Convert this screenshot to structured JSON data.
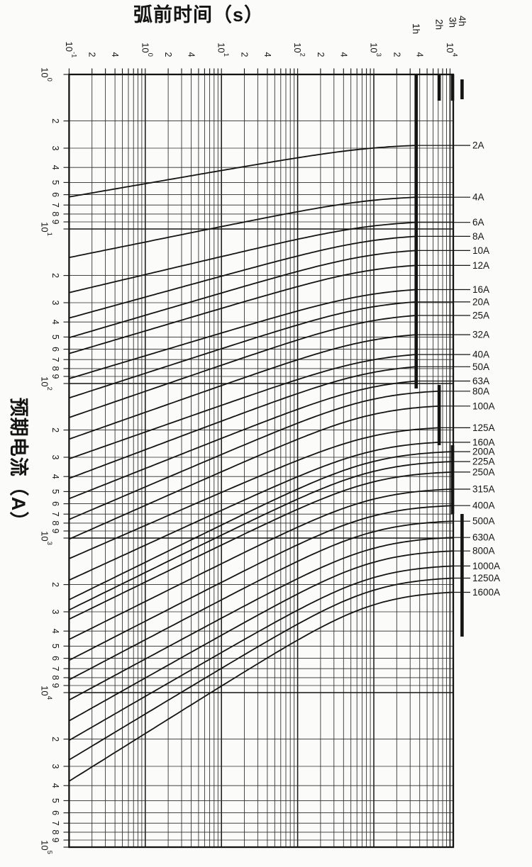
{
  "titles": {
    "x": "弧前时间（s）",
    "y": "预期电流（A）"
  },
  "chart_data": {
    "type": "line",
    "title": "弧前时间（s）",
    "xlabel": "弧前时间（s）",
    "ylabel": "预期电流（A）",
    "description": "Fuse pre-arcing time vs prospective current characteristic curves, log-log grid, time horizontal (0.1 s to >10^4 s), current vertical increasing downward (1 A to 10^5 A)",
    "x_axis": {
      "unit": "s",
      "scale": "log",
      "min": 0.1,
      "max": 11000,
      "decade_exponents": [
        -1,
        0,
        1,
        2,
        3,
        4
      ],
      "labeled_minors": [
        2,
        4
      ]
    },
    "y_axis": {
      "unit": "A",
      "scale": "log",
      "min": 1,
      "max": 100000,
      "decade_exponents": [
        0,
        1,
        2,
        3,
        4,
        5
      ],
      "labeled_minors": [
        2,
        3,
        4,
        5,
        6,
        7,
        8,
        9
      ],
      "direction": "increases-downward"
    },
    "grid": "full minor log grid both axes",
    "hour_marks": [
      {
        "label": "1h",
        "seconds": 3600
      },
      {
        "label": "2h",
        "seconds": 7200
      },
      {
        "label": "3h",
        "seconds": 10800
      },
      {
        "label": "4h",
        "seconds": 14400
      }
    ],
    "conventional_time_groups": [
      {
        "time": "1h",
        "ratings": "2A-63A"
      },
      {
        "time": "2h",
        "ratings": "80A-160A"
      },
      {
        "time": "3h",
        "ratings": "200A-400A"
      },
      {
        "time": "4h",
        "ratings": "500A-1600A"
      }
    ],
    "series": [
      {
        "label": "2A",
        "rated_A": 2,
        "i_min_A": 2.82,
        "i_0p1s_A": 6.2,
        "conv": "1h"
      },
      {
        "label": "4A",
        "rated_A": 4,
        "i_min_A": 6.08,
        "i_0p1s_A": 15.3,
        "conv": "1h"
      },
      {
        "label": "6A",
        "rated_A": 6,
        "i_min_A": 8.81,
        "i_0p1s_A": 25.8,
        "conv": "1h"
      },
      {
        "label": "8A",
        "rated_A": 8,
        "i_min_A": 10.8,
        "i_0p1s_A": 37.7,
        "conv": "1h"
      },
      {
        "label": "10A",
        "rated_A": 10,
        "i_min_A": 13.3,
        "i_0p1s_A": 50.5,
        "conv": "1h"
      },
      {
        "label": "12A",
        "rated_A": 12,
        "i_min_A": 16.6,
        "i_0p1s_A": 64,
        "conv": "1h"
      },
      {
        "label": "16A",
        "rated_A": 16,
        "i_min_A": 23.8,
        "i_0p1s_A": 93,
        "conv": "1h"
      },
      {
        "label": "20A",
        "rated_A": 20,
        "i_min_A": 28.5,
        "i_0p1s_A": 124,
        "conv": "1h"
      },
      {
        "label": "25A",
        "rated_A": 25,
        "i_min_A": 34.8,
        "i_0p1s_A": 166,
        "conv": "1h"
      },
      {
        "label": "32A",
        "rated_A": 32,
        "i_min_A": 46.3,
        "i_0p1s_A": 229,
        "conv": "1h"
      },
      {
        "label": "40A",
        "rated_A": 40,
        "i_min_A": 62.2,
        "i_0p1s_A": 307,
        "conv": "1h"
      },
      {
        "label": "50A",
        "rated_A": 50,
        "i_min_A": 74.4,
        "i_0p1s_A": 411,
        "conv": "1h"
      },
      {
        "label": "63A",
        "rated_A": 63,
        "i_min_A": 91.9,
        "i_0p1s_A": 556,
        "conv": "1h"
      },
      {
        "label": "80A",
        "rated_A": 80,
        "i_min_A": 109,
        "i_0p1s_A": 758,
        "conv": "2h"
      },
      {
        "label": "100A",
        "rated_A": 100,
        "i_min_A": 136,
        "i_0p1s_A": 1016,
        "conv": "2h"
      },
      {
        "label": "125A",
        "rated_A": 125,
        "i_min_A": 188,
        "i_0p1s_A": 1359,
        "conv": "2h"
      },
      {
        "label": "160A",
        "rated_A": 160,
        "i_min_A": 233,
        "i_0p1s_A": 1872,
        "conv": "2h"
      },
      {
        "label": "200A",
        "rated_A": 200,
        "i_min_A": 270,
        "i_0p1s_A": 2504,
        "conv": "3h"
      },
      {
        "label": "225A",
        "rated_A": 225,
        "i_min_A": 313,
        "i_0p1s_A": 2918,
        "conv": "3h"
      },
      {
        "label": "250A",
        "rated_A": 250,
        "i_min_A": 366,
        "i_0p1s_A": 3350,
        "conv": "3h"
      },
      {
        "label": "315A",
        "rated_A": 315,
        "i_min_A": 472,
        "i_0p1s_A": 4530,
        "conv": "3h"
      },
      {
        "label": "400A",
        "rated_A": 400,
        "i_min_A": 603,
        "i_0p1s_A": 6176,
        "conv": "3h"
      },
      {
        "label": "500A",
        "rated_A": 500,
        "i_min_A": 760,
        "i_0p1s_A": 8260,
        "conv": "4h"
      },
      {
        "label": "630A",
        "rated_A": 630,
        "i_min_A": 969,
        "i_0p1s_A": 11170,
        "conv": "4h"
      },
      {
        "label": "800A",
        "rated_A": 800,
        "i_min_A": 1183,
        "i_0p1s_A": 15230,
        "conv": "4h"
      },
      {
        "label": "1000A",
        "rated_A": 1000,
        "i_min_A": 1479,
        "i_0p1s_A": 20370,
        "conv": "4h"
      },
      {
        "label": "1250A",
        "rated_A": 1250,
        "i_min_A": 1770,
        "i_0p1s_A": 27240,
        "conv": "4h"
      },
      {
        "label": "1600A",
        "rated_A": 1600,
        "i_min_A": 2183,
        "i_0p1s_A": 37440,
        "conv": "4h"
      }
    ],
    "colors": {
      "ink": "#141414",
      "grid_minor": "#2b2b2b",
      "background": "#fbfbf9"
    }
  }
}
